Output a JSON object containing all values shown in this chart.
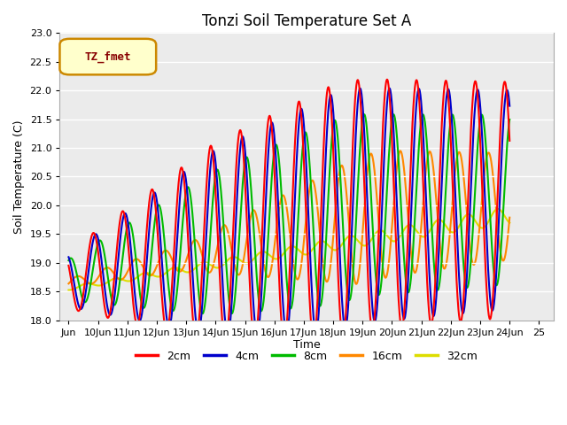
{
  "title": "Tonzi Soil Temperature Set A",
  "xlabel": "Time",
  "ylabel": "Soil Temperature (C)",
  "ylim": [
    18.0,
    23.0
  ],
  "yticks": [
    18.0,
    18.5,
    19.0,
    19.5,
    20.0,
    20.5,
    21.0,
    21.5,
    22.0,
    22.5,
    23.0
  ],
  "legend_label": "TZ_fmet",
  "series_labels": [
    "2cm",
    "4cm",
    "8cm",
    "16cm",
    "32cm"
  ],
  "series_colors": [
    "#ff0000",
    "#0000cc",
    "#00bb00",
    "#ff8800",
    "#dddd00"
  ],
  "line_widths": [
    1.5,
    1.5,
    1.5,
    1.5,
    1.5
  ],
  "background_color": "#ebebeb",
  "n_days": 15,
  "start_day": 9,
  "samples_per_day": 96
}
